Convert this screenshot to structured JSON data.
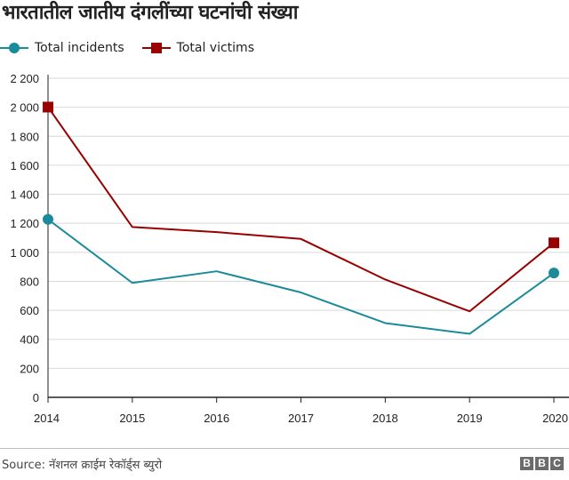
{
  "chart_data": {
    "type": "line",
    "title": "भारतातील जातीय दंगलींच्या घटनांची संख्या",
    "x": [
      "2014",
      "2015",
      "2016",
      "2017",
      "2018",
      "2019",
      "2020"
    ],
    "y_ticks": [
      "0",
      "200",
      "400",
      "600",
      "800",
      "1 000",
      "1 200",
      "1 400",
      "1 600",
      "1 800",
      "2 000",
      "2 200"
    ],
    "ylim": [
      0,
      2200
    ],
    "grid": true,
    "legend_placement": "top-left",
    "series": [
      {
        "name": "Total incidents",
        "color": "#1b8a9b",
        "marker": "circle",
        "values": [
          1227,
          789,
          869,
          723,
          512,
          438,
          857
        ]
      },
      {
        "name": "Total victims",
        "color": "#990000",
        "marker": "square",
        "values": [
          2001,
          1174,
          1139,
          1092,
          812,
          593,
          1065
        ]
      }
    ]
  },
  "footer": {
    "source": "Source: नॅशनल क्राईम रेकॉर्ड्स ब्युरो",
    "logo": [
      "B",
      "B",
      "C"
    ]
  }
}
